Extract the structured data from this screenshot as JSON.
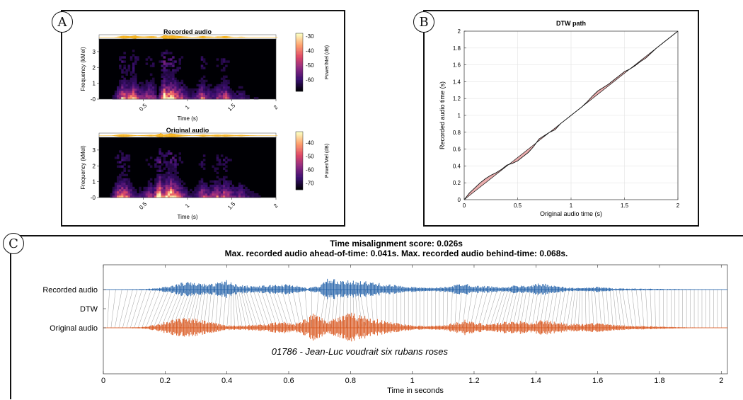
{
  "panels": {
    "a": {
      "letter": "A"
    },
    "b": {
      "letter": "B"
    },
    "c": {
      "letter": "C"
    }
  },
  "chart_data": [
    {
      "type": "heatmap",
      "title": "Recorded audio",
      "xlabel": "Time (s)",
      "ylabel": "Frequency (kMel)",
      "xticks": [
        "0.5",
        "1",
        "1.5",
        "2"
      ],
      "yticks": [
        "-0",
        "1",
        "2",
        "3"
      ],
      "xlim": [
        0,
        2
      ],
      "ylim": [
        0,
        3.8
      ],
      "colorbar": {
        "label": "Power/Mel (dB)",
        "ticks": [
          "-30",
          "-40",
          "-50",
          "-60"
        ],
        "range": [
          -68,
          -28
        ]
      },
      "colormap": [
        "#000004",
        "#3b0f70",
        "#8c2981",
        "#de4968",
        "#fe9f6d",
        "#fcfdbf"
      ]
    },
    {
      "type": "heatmap",
      "title": "Original audio",
      "xlabel": "Time (s)",
      "ylabel": "Frequency (kMel)",
      "xticks": [
        "0.5",
        "1",
        "1.5",
        "2"
      ],
      "yticks": [
        "-0",
        "1",
        "2",
        "3"
      ],
      "xlim": [
        0,
        2
      ],
      "ylim": [
        0,
        3.8
      ],
      "colorbar": {
        "label": "Power/Mel (dB)",
        "ticks": [
          "-40",
          "-50",
          "-60",
          "-70"
        ],
        "range": [
          -75,
          -32
        ]
      },
      "colormap": [
        "#000004",
        "#3b0f70",
        "#8c2981",
        "#de4968",
        "#fe9f6d",
        "#fcfdbf"
      ]
    },
    {
      "type": "line",
      "title": "DTW path",
      "xlabel": "Original audio time (s)",
      "ylabel": "Recorded audio time (s)",
      "xlim": [
        0,
        2
      ],
      "ylim": [
        0,
        2
      ],
      "xticks": [
        "0",
        "0.5",
        "1",
        "1.5",
        "2"
      ],
      "yticks": [
        "0",
        "0.2",
        "0.4",
        "0.6",
        "0.8",
        "1",
        "1.2",
        "1.4",
        "1.6",
        "1.8",
        "2"
      ],
      "grid": true,
      "series": [
        {
          "values": [
            [
              0,
              0
            ],
            [
              0.05,
              0.08
            ],
            [
              0.1,
              0.14
            ],
            [
              0.15,
              0.2
            ],
            [
              0.2,
              0.25
            ],
            [
              0.25,
              0.29
            ],
            [
              0.3,
              0.32
            ],
            [
              0.35,
              0.36
            ],
            [
              0.4,
              0.41
            ],
            [
              0.45,
              0.43
            ],
            [
              0.5,
              0.46
            ],
            [
              0.55,
              0.51
            ],
            [
              0.6,
              0.56
            ],
            [
              0.65,
              0.63
            ],
            [
              0.7,
              0.72
            ],
            [
              0.75,
              0.76
            ],
            [
              0.8,
              0.8
            ],
            [
              0.85,
              0.83
            ],
            [
              0.9,
              0.9
            ],
            [
              0.95,
              0.95
            ],
            [
              1,
              1.0
            ],
            [
              1.05,
              1.05
            ],
            [
              1.1,
              1.1
            ],
            [
              1.15,
              1.16
            ],
            [
              1.2,
              1.23
            ],
            [
              1.25,
              1.29
            ],
            [
              1.3,
              1.33
            ],
            [
              1.35,
              1.37
            ],
            [
              1.4,
              1.42
            ],
            [
              1.45,
              1.47
            ],
            [
              1.5,
              1.52
            ],
            [
              1.55,
              1.55
            ],
            [
              1.6,
              1.59
            ],
            [
              1.65,
              1.64
            ],
            [
              1.7,
              1.68
            ],
            [
              1.75,
              1.74
            ],
            [
              1.8,
              1.8
            ],
            [
              1.85,
              1.85
            ],
            [
              1.9,
              1.9
            ],
            [
              2,
              2.0
            ]
          ]
        },
        {
          "values": [
            [
              0,
              0
            ],
            [
              2,
              2
            ]
          ]
        }
      ],
      "colors": {
        "path": "#111111",
        "diagonal": "#111111",
        "fill": "#e8a0a0"
      }
    },
    {
      "type": "line",
      "title": "Time misalignment score: 0.026s",
      "subtitle": "Max. recorded audio ahead-of-time: 0.041s. Max. recorded audio behind-time: 0.068s.",
      "xlabel": "Time in seconds",
      "xlim": [
        0,
        2.02
      ],
      "xticks": [
        "0",
        "0.2",
        "0.4",
        "0.6",
        "0.8",
        "1",
        "1.2",
        "1.4",
        "1.6",
        "1.8",
        "2"
      ],
      "ylabels": [
        "Recorded audio",
        "DTW",
        "Original audio"
      ],
      "annotation": "01786 - Jean-Luc voudrait six rubans roses",
      "series": [
        {
          "name": "Recorded audio",
          "color": "#1f5fa8",
          "envelope": [
            [
              0,
              0.01
            ],
            [
              0.05,
              0.02
            ],
            [
              0.1,
              0.04
            ],
            [
              0.14,
              0.05
            ],
            [
              0.18,
              0.12
            ],
            [
              0.22,
              0.28
            ],
            [
              0.26,
              0.55
            ],
            [
              0.3,
              0.5
            ],
            [
              0.34,
              0.38
            ],
            [
              0.38,
              0.55
            ],
            [
              0.4,
              0.72
            ],
            [
              0.42,
              0.42
            ],
            [
              0.46,
              0.3
            ],
            [
              0.5,
              0.25
            ],
            [
              0.55,
              0.35
            ],
            [
              0.6,
              0.4
            ],
            [
              0.63,
              0.28
            ],
            [
              0.66,
              0.1
            ],
            [
              0.7,
              0.3
            ],
            [
              0.73,
              0.85
            ],
            [
              0.77,
              0.6
            ],
            [
              0.82,
              0.7
            ],
            [
              0.86,
              0.55
            ],
            [
              0.9,
              0.45
            ],
            [
              0.95,
              0.3
            ],
            [
              1.0,
              0.2
            ],
            [
              1.05,
              0.12
            ],
            [
              1.1,
              0.18
            ],
            [
              1.14,
              0.35
            ],
            [
              1.17,
              0.5
            ],
            [
              1.2,
              0.28
            ],
            [
              1.25,
              0.25
            ],
            [
              1.3,
              0.15
            ],
            [
              1.33,
              0.3
            ],
            [
              1.37,
              0.28
            ],
            [
              1.4,
              0.42
            ],
            [
              1.43,
              0.45
            ],
            [
              1.46,
              0.3
            ],
            [
              1.5,
              0.15
            ],
            [
              1.55,
              0.12
            ],
            [
              1.6,
              0.2
            ],
            [
              1.65,
              0.1
            ],
            [
              1.7,
              0.08
            ],
            [
              1.78,
              0.06
            ],
            [
              1.85,
              0.04
            ],
            [
              1.95,
              0.02
            ],
            [
              2.02,
              0.01
            ]
          ]
        },
        {
          "name": "Original audio",
          "color": "#d95319",
          "envelope": [
            [
              0,
              0.01
            ],
            [
              0.08,
              0.02
            ],
            [
              0.13,
              0.05
            ],
            [
              0.17,
              0.2
            ],
            [
              0.22,
              0.45
            ],
            [
              0.26,
              0.55
            ],
            [
              0.3,
              0.5
            ],
            [
              0.34,
              0.35
            ],
            [
              0.38,
              0.2
            ],
            [
              0.42,
              0.12
            ],
            [
              0.46,
              0.15
            ],
            [
              0.5,
              0.18
            ],
            [
              0.54,
              0.25
            ],
            [
              0.58,
              0.35
            ],
            [
              0.62,
              0.25
            ],
            [
              0.66,
              0.55
            ],
            [
              0.69,
              0.95
            ],
            [
              0.72,
              0.4
            ],
            [
              0.76,
              0.6
            ],
            [
              0.8,
              0.85
            ],
            [
              0.84,
              0.7
            ],
            [
              0.88,
              0.5
            ],
            [
              0.92,
              0.35
            ],
            [
              0.96,
              0.25
            ],
            [
              1.0,
              0.15
            ],
            [
              1.05,
              0.1
            ],
            [
              1.1,
              0.15
            ],
            [
              1.14,
              0.3
            ],
            [
              1.17,
              0.45
            ],
            [
              1.2,
              0.3
            ],
            [
              1.25,
              0.22
            ],
            [
              1.3,
              0.35
            ],
            [
              1.34,
              0.4
            ],
            [
              1.38,
              0.3
            ],
            [
              1.42,
              0.45
            ],
            [
              1.46,
              0.35
            ],
            [
              1.5,
              0.25
            ],
            [
              1.55,
              0.2
            ],
            [
              1.6,
              0.3
            ],
            [
              1.64,
              0.18
            ],
            [
              1.7,
              0.12
            ],
            [
              1.76,
              0.1
            ],
            [
              1.82,
              0.06
            ],
            [
              1.88,
              0.03
            ],
            [
              1.95,
              0.01
            ],
            [
              2.02,
              0.01
            ]
          ]
        }
      ]
    }
  ]
}
